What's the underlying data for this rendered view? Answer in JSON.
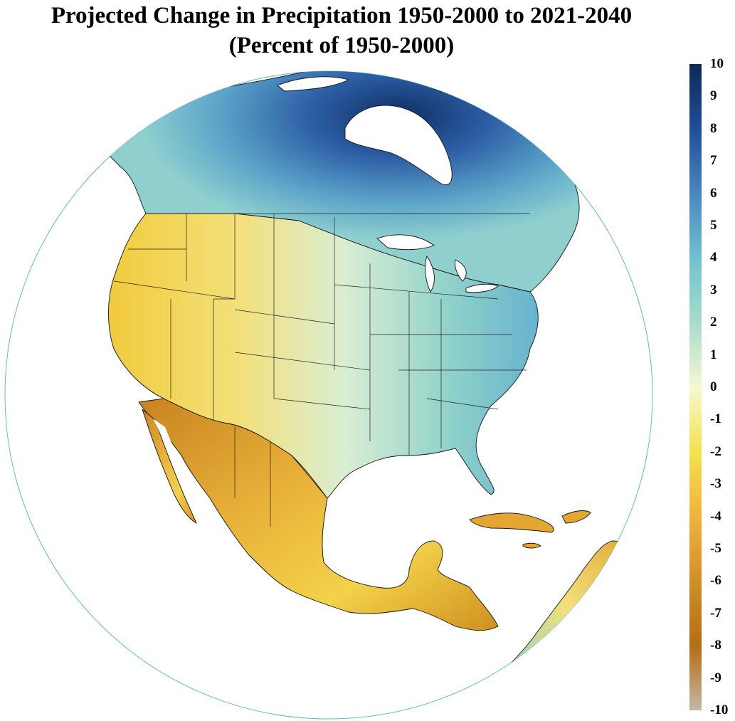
{
  "title": {
    "line1": "Projected Change in Precipitation 1950-2000 to 2021-2040",
    "line2": "(Percent of 1950-2000)"
  },
  "colorbar": {
    "labels": [
      "10",
      "9",
      "8",
      "7",
      "6",
      "5",
      "4",
      "3",
      "2",
      "1",
      "0",
      "-1",
      "-2",
      "-3",
      "-4",
      "-5",
      "-6",
      "-7",
      "-8",
      "-9",
      "-10"
    ],
    "scale": [
      {
        "value": 10,
        "color": "#0b2a56"
      },
      {
        "value": 8,
        "color": "#1f4f98"
      },
      {
        "value": 6,
        "color": "#4a86bf"
      },
      {
        "value": 4,
        "color": "#6fc1d2"
      },
      {
        "value": 2,
        "color": "#a8dccb"
      },
      {
        "value": 0,
        "color": "#f6f8d2"
      },
      {
        "value": -2,
        "color": "#f4e24a"
      },
      {
        "value": -4,
        "color": "#f0b23e"
      },
      {
        "value": -6,
        "color": "#d28f28"
      },
      {
        "value": -8,
        "color": "#b56d12"
      },
      {
        "value": -10,
        "color": "#c4b7a8"
      }
    ]
  },
  "globe_outline_color": "#5fb8cf"
}
